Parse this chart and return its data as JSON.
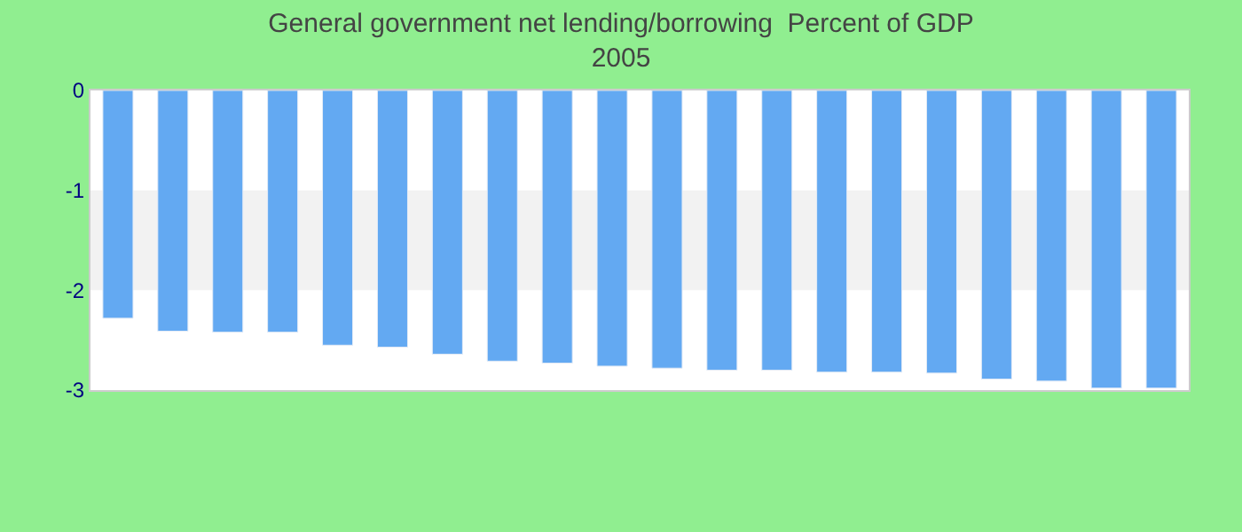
{
  "chart_data": {
    "type": "bar",
    "title": "General government net lending/borrowing  Percent of GDP",
    "subtitle": "2005",
    "categories": [
      null,
      null,
      null,
      null,
      null,
      null,
      null,
      null,
      null,
      null,
      null,
      null,
      null,
      null,
      null,
      null,
      null,
      null,
      null,
      null
    ],
    "values": [
      -2.28,
      -2.41,
      -2.42,
      -2.42,
      -2.55,
      -2.57,
      -2.64,
      -2.71,
      -2.73,
      -2.76,
      -2.78,
      -2.8,
      -2.8,
      -2.82,
      -2.82,
      -2.83,
      -2.89,
      -2.91,
      -2.98,
      -2.98
    ],
    "color": "#63a9f2",
    "ylim": [
      -3,
      0
    ],
    "yticks": [
      -3,
      -2,
      -1,
      0
    ],
    "bands": [
      {
        "axis": "y",
        "from": -2,
        "to": -1,
        "color": "#f2f2f2"
      }
    ],
    "grid": false
  }
}
